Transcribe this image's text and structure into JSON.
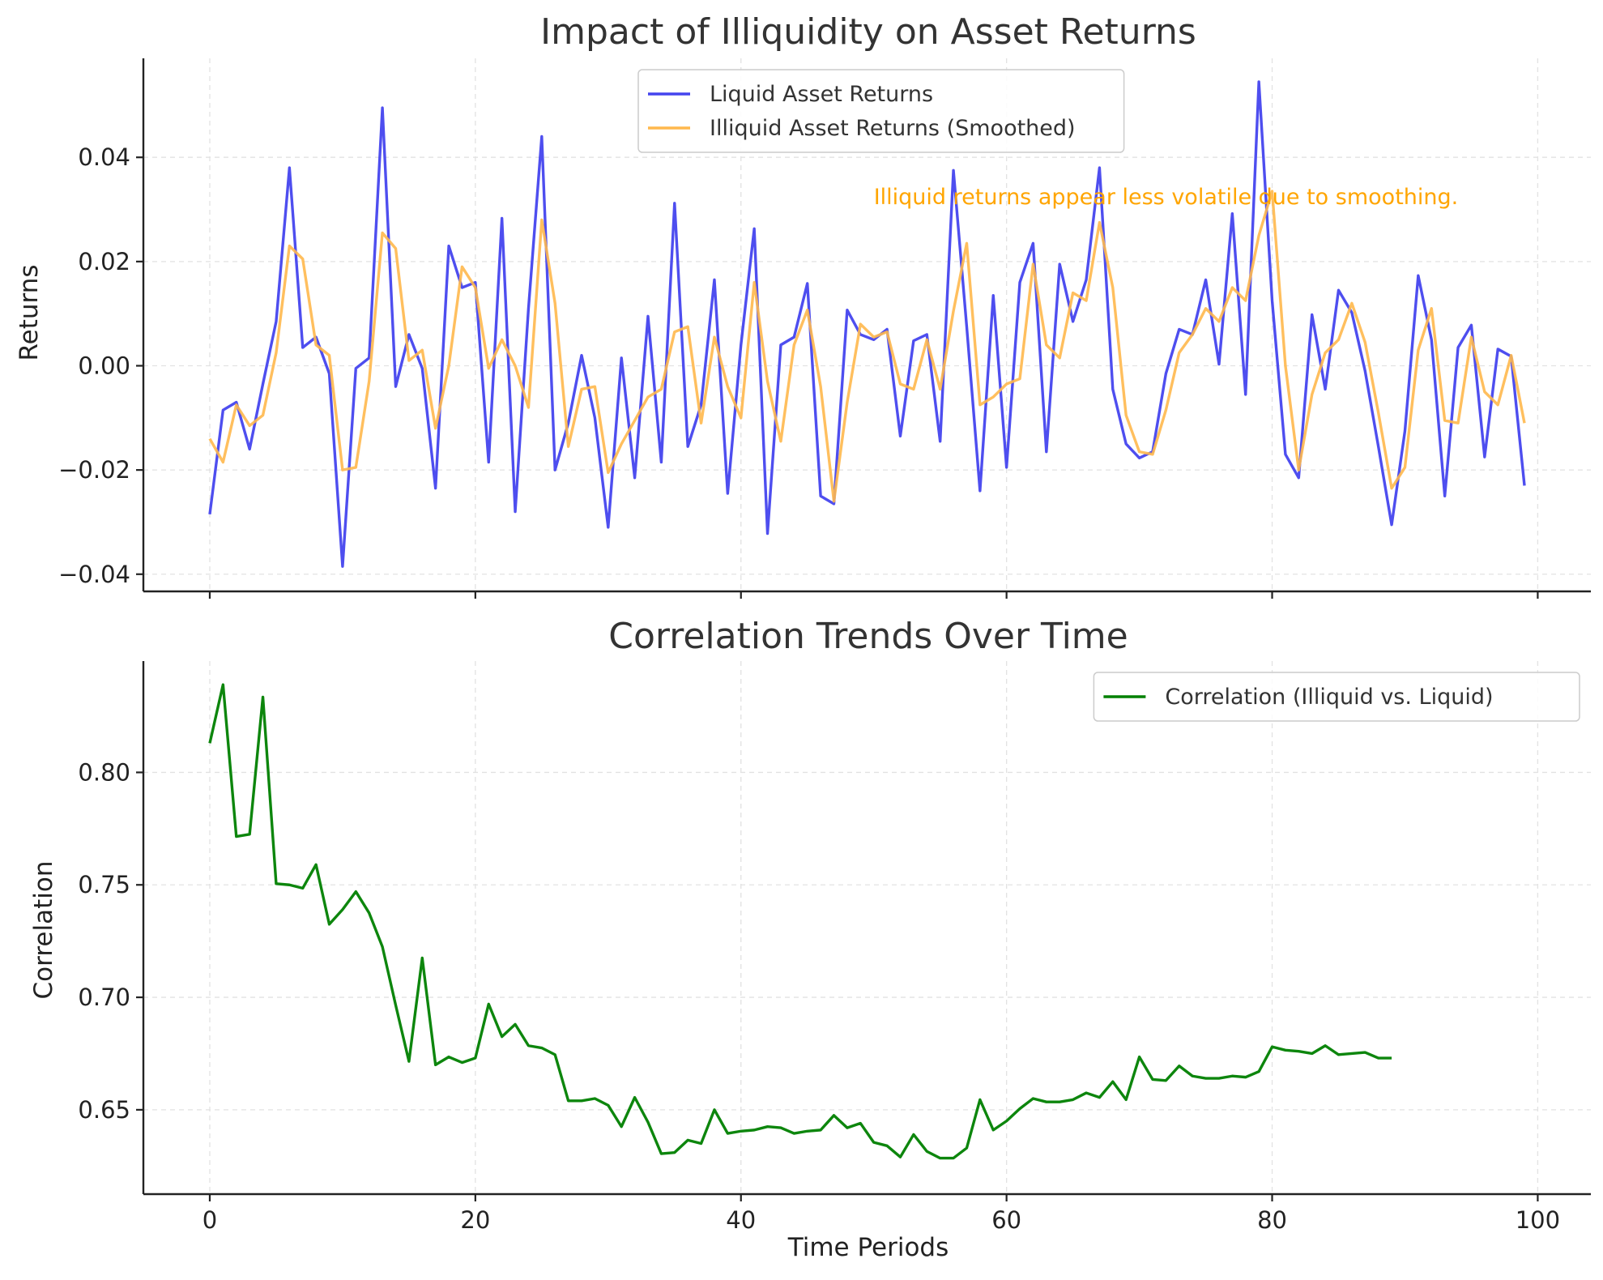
{
  "chart_data": [
    {
      "type": "line",
      "title": "Impact of Illiquidity on Asset Returns",
      "xlabel": "",
      "ylabel": "Returns",
      "xlim": [
        -5,
        104
      ],
      "ylim": [
        -0.0433,
        0.059
      ],
      "xticks": [
        0,
        20,
        40,
        60,
        80,
        100
      ],
      "yticks": [
        -0.04,
        -0.02,
        0.0,
        0.02,
        0.04
      ],
      "ytick_labels": [
        "−0.04",
        "−0.02",
        "0.00",
        "0.02",
        "0.04"
      ],
      "xtick_labels_visible": false,
      "grid": true,
      "legend_position": "top-center",
      "annotation": {
        "text": "Illiquid returns appear less volatile due to smoothing.",
        "x": 50,
        "y": 0.031,
        "color": "#FFA500"
      },
      "series": [
        {
          "name": "Liquid Asset Returns",
          "color": "#4444EE",
          "values": [
            -0.0285,
            -0.0085,
            -0.007,
            -0.016,
            -0.0035,
            0.0085,
            0.038,
            0.0035,
            0.0055,
            -0.0015,
            -0.0385,
            -0.0005,
            0.0015,
            0.0495,
            -0.004,
            0.006,
            -0.0005,
            -0.0235,
            0.023,
            0.015,
            0.016,
            -0.0185,
            0.0283,
            -0.028,
            0.011,
            0.044,
            -0.02,
            -0.011,
            0.002,
            -0.01,
            -0.031,
            0.0015,
            -0.0215,
            0.0095,
            -0.0185,
            0.0312,
            -0.0155,
            -0.0075,
            0.0165,
            -0.0245,
            0.004,
            0.0263,
            -0.0322,
            0.004,
            0.0055,
            0.0158,
            -0.025,
            -0.0265,
            0.0107,
            0.006,
            0.005,
            0.007,
            -0.0135,
            0.0048,
            0.006,
            -0.0145,
            0.0375,
            0.0075,
            -0.024,
            0.0135,
            -0.0195,
            0.016,
            0.0235,
            -0.0165,
            0.0195,
            0.0085,
            0.0165,
            0.038,
            -0.0045,
            -0.015,
            -0.0177,
            -0.0165,
            -0.0015,
            0.007,
            0.006,
            0.0165,
            0.0003,
            0.0292,
            -0.0055,
            0.0545,
            0.0125,
            -0.017,
            -0.0215,
            0.0098,
            -0.0045,
            0.0145,
            0.0102,
            -0.001,
            -0.0155,
            -0.0305,
            -0.0125,
            0.0173,
            0.005,
            -0.025,
            0.0035,
            0.0078,
            -0.0175,
            0.0032,
            0.0018,
            -0.023
          ]
        },
        {
          "name": "Illiquid Asset Returns (Smoothed)",
          "color": "#FFB84D",
          "values": [
            -0.014,
            -0.0185,
            -0.0075,
            -0.0115,
            -0.0095,
            0.0025,
            0.023,
            0.0205,
            0.004,
            0.002,
            -0.02,
            -0.0195,
            -0.003,
            0.0255,
            0.0225,
            0.001,
            0.003,
            -0.012,
            0.0,
            0.019,
            0.015,
            -0.0005,
            0.005,
            0.0,
            -0.008,
            0.028,
            0.012,
            -0.0155,
            -0.0045,
            -0.004,
            -0.0205,
            -0.015,
            -0.0105,
            -0.006,
            -0.0045,
            0.0065,
            0.0075,
            -0.011,
            0.0055,
            -0.004,
            -0.01,
            0.016,
            -0.003,
            -0.0145,
            0.004,
            0.0107,
            -0.004,
            -0.026,
            -0.007,
            0.008,
            0.0055,
            0.0065,
            -0.0035,
            -0.0045,
            0.005,
            -0.0045,
            0.0105,
            0.0235,
            -0.0075,
            -0.006,
            -0.0035,
            -0.0025,
            0.0195,
            0.004,
            0.0015,
            0.014,
            0.0125,
            0.0275,
            0.015,
            -0.0095,
            -0.0165,
            -0.017,
            -0.0085,
            0.0025,
            0.006,
            0.011,
            0.0085,
            0.015,
            0.0125,
            0.025,
            0.0335,
            0.0,
            -0.02,
            -0.0055,
            0.0025,
            0.005,
            0.012,
            0.0045,
            -0.009,
            -0.0235,
            -0.0195,
            0.003,
            0.011,
            -0.0105,
            -0.011,
            0.0055,
            -0.005,
            -0.0075,
            0.002,
            -0.011
          ]
        }
      ]
    },
    {
      "type": "line",
      "title": "Correlation Trends Over Time",
      "xlabel": "Time Periods",
      "ylabel": "Correlation",
      "xlim": [
        -5,
        104
      ],
      "ylim": [
        0.6125,
        0.8495
      ],
      "xticks": [
        0,
        20,
        40,
        60,
        80,
        100
      ],
      "yticks": [
        0.65,
        0.7,
        0.75,
        0.8
      ],
      "ytick_labels": [
        "0.65",
        "0.70",
        "0.75",
        "0.80"
      ],
      "xtick_labels_visible": true,
      "grid": true,
      "legend_position": "top-right",
      "series": [
        {
          "name": "Correlation (Illiquid vs. Liquid)",
          "color": "#008000",
          "values": [
            0.813,
            0.839,
            0.7715,
            0.7725,
            0.8335,
            0.7505,
            0.75,
            0.7485,
            0.759,
            0.7325,
            0.739,
            0.747,
            0.7375,
            0.7225,
            0.6965,
            0.6715,
            0.7175,
            0.67,
            0.6735,
            0.671,
            0.673,
            0.697,
            0.6825,
            0.688,
            0.6785,
            0.6775,
            0.6745,
            0.654,
            0.654,
            0.655,
            0.652,
            0.6425,
            0.6555,
            0.6445,
            0.6305,
            0.631,
            0.6365,
            0.635,
            0.65,
            0.6395,
            0.6405,
            0.641,
            0.6425,
            0.642,
            0.6395,
            0.6405,
            0.641,
            0.6475,
            0.642,
            0.644,
            0.6355,
            0.634,
            0.629,
            0.639,
            0.6315,
            0.6285,
            0.6285,
            0.633,
            0.6545,
            0.641,
            0.645,
            0.6505,
            0.655,
            0.6535,
            0.6535,
            0.6545,
            0.6575,
            0.6555,
            0.6625,
            0.6545,
            0.6735,
            0.6635,
            0.663,
            0.6695,
            0.665,
            0.664,
            0.664,
            0.665,
            0.6645,
            0.667,
            0.678,
            0.6765,
            0.676,
            0.675,
            0.6785,
            0.6745,
            0.675,
            0.6755,
            0.673,
            0.673
          ]
        }
      ]
    }
  ]
}
